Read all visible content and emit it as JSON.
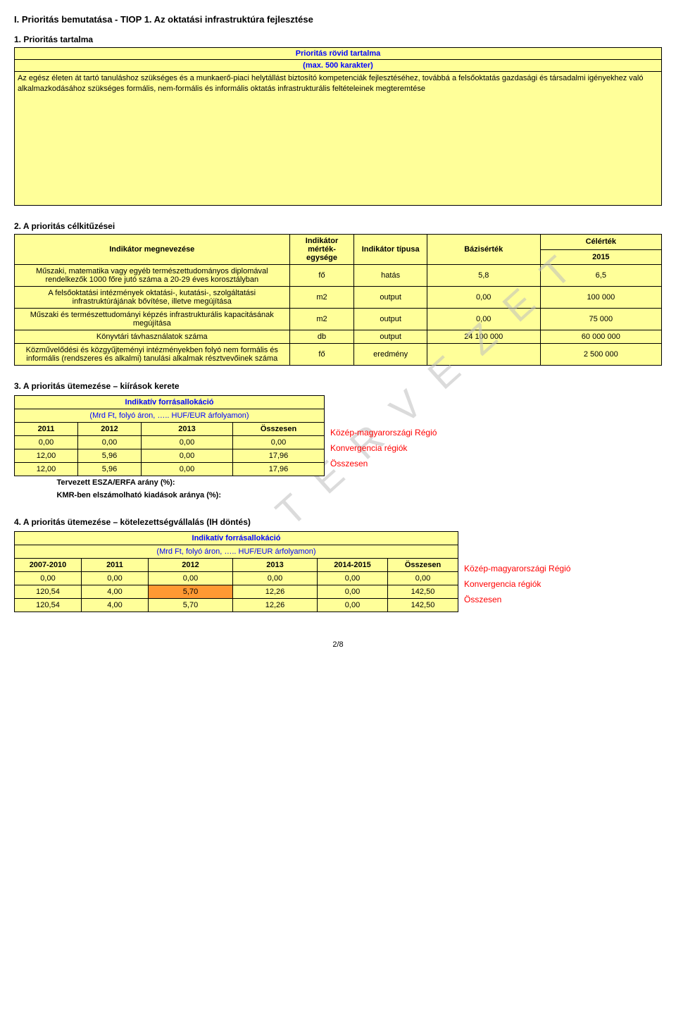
{
  "headings": {
    "main": "I. Prioritás bemutatása - TIOP 1.  Az oktatási infrastruktúra fejlesztése",
    "h1": "1. Prioritás tartalma",
    "h2": "2. A prioritás célkitűzései",
    "h3": "3. A prioritás ütemezése – kiírások kerete",
    "h4": "4. A prioritás ütemezése – kötelezettségvállalás (IH döntés)"
  },
  "box1": {
    "title": "Prioritás rövid tartalma",
    "subtitle": "(max. 500 karakter)",
    "body": "Az egész életen át tartó tanuláshoz szükséges és a munkaerő-piaci helytállást biztosító kompetenciák fejlesztéséhez, továbbá a felsőoktatás gazdasági és társadalmi igényekhez való alkalmazkodásához szükséges formális, nem-formális és informális oktatás infrastrukturális feltételeinek megteremtése"
  },
  "indicator_table": {
    "headers": {
      "name": "Indikátor megnevezése",
      "unit": "Indikátor mérték-egysége",
      "type": "Indikátor típusa",
      "base": "Bázisérték",
      "target_label": "Célérték",
      "target_year": "2015"
    },
    "rows": [
      {
        "name": "Műszaki, matematika vagy egyéb természettudományos diplomával rendelkezők 1000 főre jutó száma a 20-29 éves korosztályban",
        "unit": "fő",
        "type": "hatás",
        "base": "5,8",
        "target": "6,5"
      },
      {
        "name": "A felsőoktatási intézmények oktatási-, kutatási-, szolgáltatási infrastruktúrájának bővítése, illetve megújítása",
        "unit": "m2",
        "type": "output",
        "base": "0,00",
        "target": "100 000"
      },
      {
        "name": "Műszaki és természettudományi képzés infrastrukturális kapacitásának megújítása",
        "unit": "m2",
        "type": "output",
        "base": "0,00",
        "target": "75 000"
      },
      {
        "name": "Könyvtári távhasználatok száma",
        "unit": "db",
        "type": "output",
        "base": "24 100 000",
        "target": "60 000 000"
      },
      {
        "name": "Közművelődési és közgyűjteményi intézményekben folyó nem formális és informális (rendszeres és alkalmi) tanulási alkalmak résztvevőinek száma",
        "unit": "fő",
        "type": "eredmény",
        "base": "",
        "target": "2 500 000"
      }
    ]
  },
  "allocation3": {
    "title": "Indikatív forrásallokáció",
    "subtitle": "(Mrd Ft, folyó áron, ….. HUF/EUR árfolyamon)",
    "headers": [
      "2011",
      "2012",
      "2013",
      "Összesen"
    ],
    "rows": [
      {
        "cells": [
          "0,00",
          "0,00",
          "0,00",
          "0,00"
        ],
        "label": "Közép-magyarországi Régió"
      },
      {
        "cells": [
          "12,00",
          "5,96",
          "0,00",
          "17,96"
        ],
        "label": "Konvergencia régiók"
      },
      {
        "cells": [
          "12,00",
          "5,96",
          "0,00",
          "17,96"
        ],
        "label": "Összesen"
      }
    ],
    "plan1": "Tervezett ESZA/ERFA arány (%):",
    "plan2": "KMR-ben elszámolható kiadások aránya (%):",
    "col_widths": [
      "90px",
      "90px",
      "130px",
      "130px"
    ]
  },
  "allocation4": {
    "title": "Indikatív forrásallokáció",
    "subtitle": "(Mrd Ft, folyó áron, ….. HUF/EUR árfolyamon)",
    "headers": [
      "2007-2010",
      "2011",
      "2012",
      "2013",
      "2014-2015",
      "Összesen"
    ],
    "rows": [
      {
        "cells": [
          "0,00",
          "0,00",
          "0,00",
          "0,00",
          "0,00",
          "0,00"
        ],
        "label": "Közép-magyarországi Régió",
        "highlight_col": -1
      },
      {
        "cells": [
          "120,54",
          "4,00",
          "5,70",
          "12,26",
          "0,00",
          "142,50"
        ],
        "label": "Konvergencia régiók",
        "highlight_col": 2
      },
      {
        "cells": [
          "120,54",
          "4,00",
          "5,70",
          "12,26",
          "0,00",
          "142,50"
        ],
        "label": "Összesen",
        "highlight_col": -1
      }
    ],
    "col_widths": [
      "95px",
      "95px",
      "120px",
      "120px",
      "100px",
      "100px"
    ]
  },
  "watermark": "T E R V E Z E T",
  "page": "2/8",
  "colors": {
    "blue": "#0000ff",
    "red": "#ff0000",
    "yellow": "#ffff99",
    "orange": "#ff9933",
    "grey": "#bfbfbf",
    "black": "#000000",
    "white": "#ffffff"
  }
}
